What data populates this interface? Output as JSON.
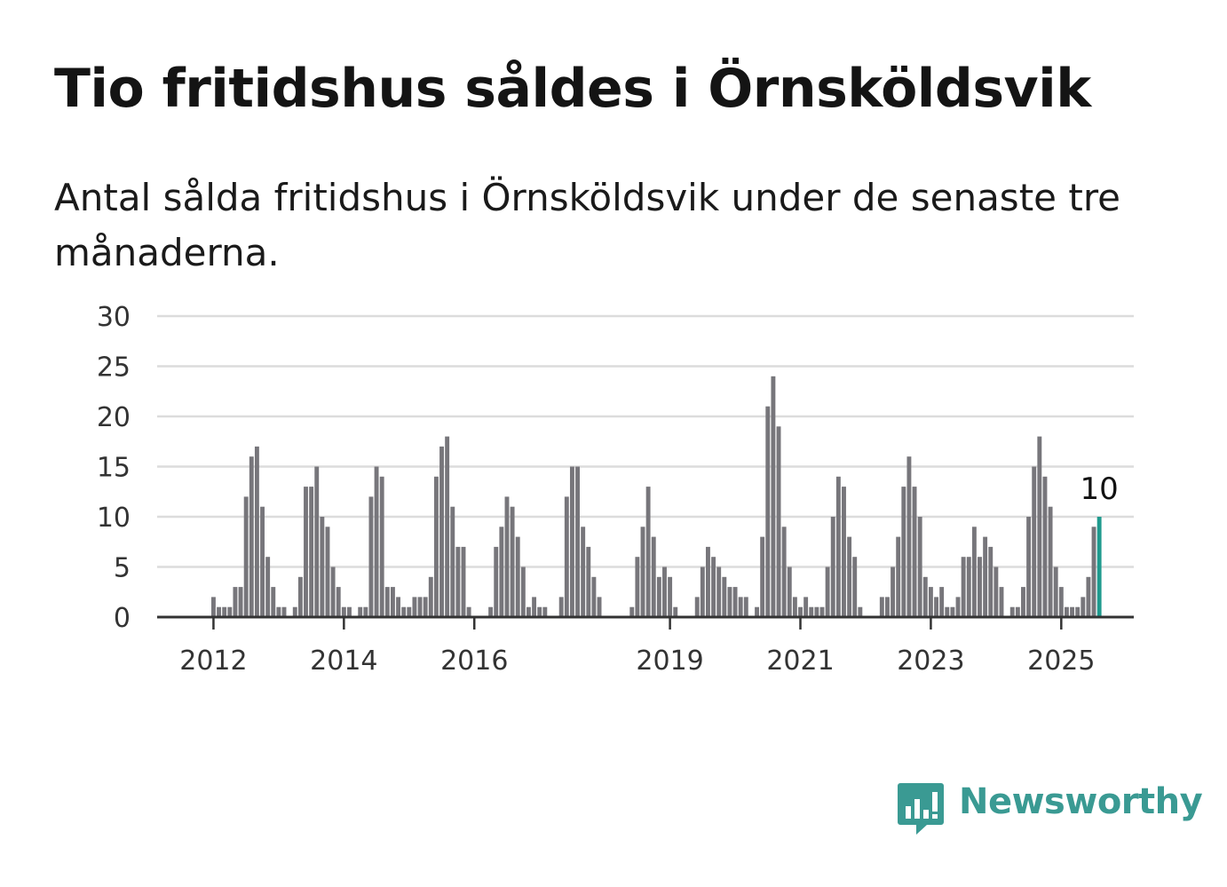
{
  "title": "Tio fritidshus såldes i Örnsköldsvik",
  "subtitle": "Antal sålda fritidshus i Örnsköldsvik under de senaste tre månaderna.",
  "brand": {
    "name": "Newsworthy",
    "color": "#3a9a93"
  },
  "colors": {
    "bar": "#77767b",
    "highlight": "#1f9a8e",
    "grid": "#dcdcdc",
    "axis": "#333333"
  },
  "chart_data": {
    "type": "bar",
    "xlabel": "",
    "ylabel": "",
    "ylim": [
      0,
      30
    ],
    "yticks": [
      0,
      5,
      10,
      15,
      20,
      25,
      30
    ],
    "x_start": "2011-11",
    "xticks": [
      {
        "label": "2012",
        "month": "2012-01"
      },
      {
        "label": "2014",
        "month": "2014-01"
      },
      {
        "label": "2016",
        "month": "2016-01"
      },
      {
        "label": "2019",
        "month": "2019-01"
      },
      {
        "label": "2021",
        "month": "2021-01"
      },
      {
        "label": "2023",
        "month": "2023-01"
      },
      {
        "label": "2025",
        "month": "2025-01"
      }
    ],
    "values": [
      0,
      0,
      2,
      1,
      1,
      1,
      3,
      3,
      12,
      16,
      17,
      11,
      6,
      3,
      1,
      1,
      0,
      1,
      4,
      13,
      13,
      15,
      10,
      9,
      5,
      3,
      1,
      1,
      0,
      1,
      1,
      12,
      15,
      14,
      3,
      3,
      2,
      1,
      1,
      2,
      2,
      2,
      4,
      14,
      17,
      18,
      11,
      7,
      7,
      1,
      0,
      0,
      0,
      1,
      7,
      9,
      12,
      11,
      8,
      5,
      1,
      2,
      1,
      1,
      0,
      0,
      2,
      12,
      15,
      15,
      9,
      7,
      4,
      2,
      0,
      0,
      0,
      0,
      0,
      1,
      6,
      9,
      13,
      8,
      4,
      5,
      4,
      1,
      0,
      0,
      0,
      2,
      5,
      7,
      6,
      5,
      4,
      3,
      3,
      2,
      2,
      0,
      1,
      8,
      21,
      24,
      19,
      9,
      5,
      2,
      1,
      2,
      1,
      1,
      1,
      5,
      10,
      14,
      13,
      8,
      6,
      1,
      0,
      0,
      0,
      2,
      2,
      5,
      8,
      13,
      16,
      13,
      10,
      4,
      3,
      2,
      3,
      1,
      1,
      2,
      6,
      6,
      9,
      6,
      8,
      7,
      5,
      3,
      0,
      1,
      1,
      3,
      10,
      15,
      18,
      14,
      11,
      5,
      3,
      1,
      1,
      1,
      2,
      4,
      9,
      10
    ],
    "highlight_value": "10"
  }
}
